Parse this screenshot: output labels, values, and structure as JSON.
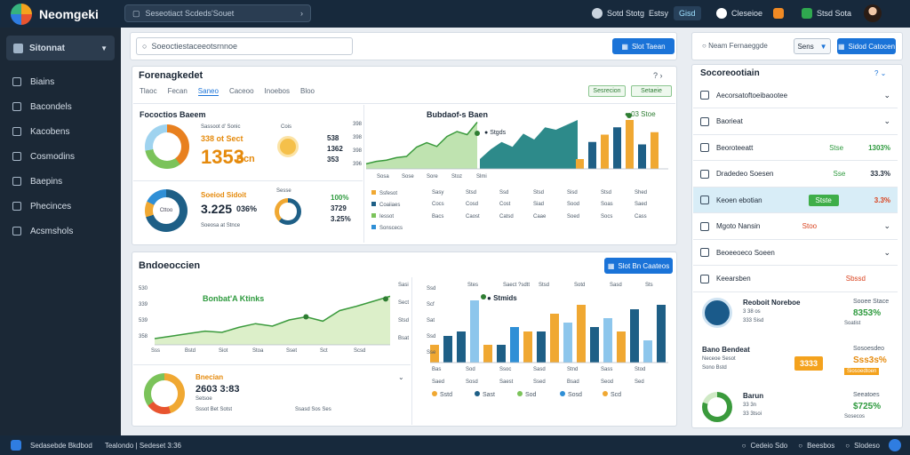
{
  "app": {
    "title": "Neomgeki",
    "search_text": "Seseotiact Scdeds'Souet"
  },
  "topbar": {
    "item1": "Sotd Stotg",
    "item1b": "Estsy",
    "chip": "Gisd",
    "item2": "Cleseioe",
    "item3": "Stsd Sota"
  },
  "sidebar": {
    "header": "Sitonnat",
    "items": [
      {
        "label": "Biains",
        "icon": "home-icon"
      },
      {
        "label": "Bacondels",
        "icon": "search-icon"
      },
      {
        "label": "Kacobens",
        "icon": "document-icon"
      },
      {
        "label": "Cosmodins",
        "icon": "list-icon"
      },
      {
        "label": "Baepins",
        "icon": "gear-icon"
      },
      {
        "label": "Phecinces",
        "icon": "chart-icon"
      },
      {
        "label": "Acsmshols",
        "icon": "pen-icon"
      }
    ]
  },
  "toolbar": {
    "filter_value": "Soeoctiestaceeotsrnnoe",
    "button": "Slot Taean"
  },
  "right_toolbar": {
    "label": "Neam Fernaeggde",
    "select": "Sens",
    "button": "Sidod Catocen"
  },
  "overview": {
    "title": "Forenagkedet",
    "tabs": [
      "Tlaoc",
      "Fecan",
      "Saneo",
      "Caceoo",
      "Inoebos",
      "Bloo"
    ],
    "buttons": [
      "Sesrecion",
      "Setaeie"
    ],
    "card1": {
      "title": "Fococtios Baeem",
      "small1": "Sassoot d' Sonic",
      "value1": "338 ot Sect",
      "big": "1353",
      "big_suffix": "Bcn",
      "small2": "Cois",
      "n1": "538",
      "n2": "1362",
      "n3": "353"
    },
    "card2": {
      "title": "Soeiod Sidoit",
      "big": "3.225",
      "pct": "036%",
      "small": "Soeosa at Stnce",
      "donut_lbl": "Cttoo",
      "n1": "100%",
      "n2": "3729",
      "n3": "3.25%",
      "small2": "Sesse"
    },
    "chart1": {
      "title": "Bubdaof-s Baen",
      "annot": "Stgds",
      "legend_value": "03 Stoe",
      "ylabels": [
        "398",
        "398",
        "398",
        "396"
      ],
      "xlabels": [
        "Sosa",
        "Sose",
        "Sore",
        "Stoz",
        "Slmi"
      ],
      "legend": [
        "Ssfesot",
        "Coaiiaes",
        "Iessot",
        "Sonscecs"
      ],
      "cols2": [
        "Sasy",
        "Stsd",
        "Ssd",
        "Stsd",
        "Sisd",
        "Stsd",
        "Shed"
      ],
      "cols2b": [
        "Cocs",
        "Cosd",
        "Cost",
        "Siad",
        "Sood",
        "Soas",
        "Saed"
      ],
      "cols2c": [
        "Bacs",
        "Caost",
        "Catsd",
        "Caae",
        "Soed",
        "Socs",
        "Cass"
      ],
      "line": [
        8,
        12,
        14,
        18,
        20,
        35,
        42,
        36,
        52,
        60,
        55,
        75
      ],
      "area": [
        20,
        40,
        55,
        45,
        72,
        60,
        85,
        80,
        90,
        100
      ],
      "bars": [
        {
          "v": 20,
          "c": "#f0a832"
        },
        {
          "v": 55,
          "c": "#1e5f86"
        },
        {
          "v": 70,
          "c": "#f0a832"
        },
        {
          "v": 85,
          "c": "#1e5f86"
        },
        {
          "v": 100,
          "c": "#f0a832"
        },
        {
          "v": 50,
          "c": "#1e5f86"
        },
        {
          "v": 75,
          "c": "#f0a832"
        }
      ]
    }
  },
  "distribution": {
    "title": "Bndoeoccien",
    "button": "Slot Bn Caateos",
    "chart2": {
      "title": "Bonbat'A Ktinks",
      "ylabels": [
        "530",
        "339",
        "539",
        "358"
      ],
      "xlabels": [
        "Sss",
        "Bstd",
        "Siot",
        "Stoa",
        "Sset",
        "Sct",
        "Scsd"
      ],
      "rlabels": [
        "Sasi",
        "Sect",
        "Stsd",
        "Bsat"
      ],
      "values": [
        10,
        14,
        18,
        22,
        20,
        28,
        34,
        30,
        40,
        45,
        38,
        55,
        62,
        70,
        78
      ]
    },
    "chart3": {
      "title": "Stmids",
      "toplabels": [
        "Stes",
        "Saect ?sdtt",
        "Stsd",
        "Sotd",
        "Sasd",
        "Sts"
      ],
      "rlabels": [
        "Ssd",
        "Scf",
        "Sat",
        "Ssd",
        "Sse"
      ],
      "xlabels": [
        "Bas",
        "Sod",
        "Ssoc",
        "Sasd",
        "Stnd",
        "Sass",
        "Stod",
        "Saed",
        "Sosd",
        "Saest",
        "Ssed",
        "Bsad",
        "Seod",
        "Sed"
      ],
      "bars": [
        {
          "v": 20,
          "c": "#f0a832"
        },
        {
          "v": 30,
          "c": "#1e5f86"
        },
        {
          "v": 35,
          "c": "#1e5f86"
        },
        {
          "v": 70,
          "c": "#8dc6ec"
        },
        {
          "v": 20,
          "c": "#f0a832"
        },
        {
          "v": 20,
          "c": "#1e5f86"
        },
        {
          "v": 40,
          "c": "#2f8fd6"
        },
        {
          "v": 35,
          "c": "#f0a832"
        },
        {
          "v": 35,
          "c": "#1e5f86"
        },
        {
          "v": 55,
          "c": "#f0a832"
        },
        {
          "v": 45,
          "c": "#8dc6ec"
        },
        {
          "v": 65,
          "c": "#f0a832"
        },
        {
          "v": 40,
          "c": "#1e5f86"
        },
        {
          "v": 50,
          "c": "#8dc6ec"
        },
        {
          "v": 35,
          "c": "#f0a832"
        },
        {
          "v": 60,
          "c": "#1e5f86"
        },
        {
          "v": 25,
          "c": "#8dc6ec"
        },
        {
          "v": 65,
          "c": "#1e5f86"
        }
      ],
      "legend": [
        "Sstd",
        "Sast",
        "Sod",
        "Sosd",
        "Scd"
      ]
    },
    "card3": {
      "title": "Bnecian",
      "value": "2603 3:83",
      "small": "Setsoe",
      "footer": "Sssot Bet Sotst",
      "sub": "Ssasd Sos Ses"
    }
  },
  "right_panel": {
    "title": "Socoreootiain",
    "rows": [
      {
        "label": "Aecorsatoftoeibaootee",
        "v1": "",
        "v2": "",
        "chev": "v"
      },
      {
        "label": "Baorieat",
        "v1": "",
        "v2": "",
        "chev": "v"
      },
      {
        "label": "Beoroteeatt",
        "v1": "Stse",
        "v2": "1303%"
      },
      {
        "label": "Dradedeo Soesen",
        "v1": "Sse",
        "v2": "33.3%"
      },
      {
        "label": "Keoen ebotian",
        "v1": "Stste",
        "v2": "3.3%",
        "sel": true
      },
      {
        "label": "Mgoto Nansin",
        "v1": "Stoo",
        "v2": "",
        "chev": "v"
      },
      {
        "label": "Beoeeoeco Soeen",
        "v1": "",
        "v2": "",
        "chev": "v"
      },
      {
        "label": "Keearsben",
        "v1": "Sbssd",
        "v2": ""
      }
    ],
    "cards": [
      {
        "title": "Reoboit Noreboe",
        "sub": "3 38 os",
        "sub2": "333 Sisd",
        "r1": "Sooee Stace",
        "r2": "8353%",
        "r3": "Soatist"
      },
      {
        "title": "Bano Bendeat",
        "sub": "Neceoe Sesot",
        "sub2": "Sono Bstd",
        "badge": "3333",
        "r1": "Sosoesdeo",
        "r2": "Sss3s%",
        "r3": "Siosoedtoen"
      },
      {
        "title": "Barun",
        "sub": "33 3n",
        "sub2": "33 3tsoi",
        "r1": "Seeatoes",
        "r2": "$725%",
        "r3": "Sosecos"
      }
    ]
  },
  "footer": {
    "left": "Sedasebde Bkdbod",
    "left2": "Tealondo | Sedeset 3:36",
    "right1": "Cedeio Sdo",
    "right2": "Beesbos",
    "right3": "Slodeso"
  }
}
